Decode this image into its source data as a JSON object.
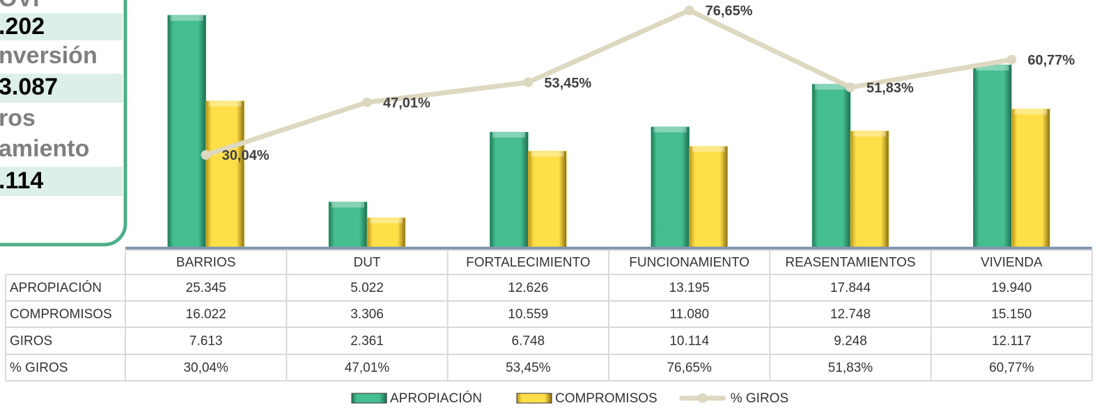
{
  "panel": {
    "lines": [
      "OVI",
      ".202",
      "nversión",
      "3.087",
      "ros",
      "amiento",
      ".114"
    ]
  },
  "chart_data": {
    "type": "bar",
    "categories": [
      "BARRIOS",
      "DUT",
      "FORTALECIMIENTO",
      "FUNCIONAMIENTO",
      "REASENTAMIENTOS",
      "VIVIENDA"
    ],
    "series": [
      {
        "name": "APROPIACIÓN",
        "type": "bar",
        "color": "#3cb386",
        "values": [
          25345,
          5022,
          12626,
          13195,
          17844,
          19940
        ],
        "value_labels": [
          "25.345",
          "5.022",
          "12.626",
          "13.195",
          "17.844",
          "19.940"
        ]
      },
      {
        "name": "COMPROMISOS",
        "type": "bar",
        "color": "#ffd940",
        "values": [
          16022,
          3306,
          10559,
          11080,
          12748,
          15150
        ],
        "value_labels": [
          "16.022",
          "3.306",
          "10.559",
          "11.080",
          "12.748",
          "15.150"
        ]
      },
      {
        "name": "GIROS",
        "type": "table",
        "values": [
          7613,
          2361,
          6748,
          10114,
          9248,
          12117
        ],
        "value_labels": [
          "7.613",
          "2.361",
          "6.748",
          "10.114",
          "9.248",
          "12.117"
        ]
      },
      {
        "name": "% GIROS",
        "type": "line",
        "axis": "y2",
        "color": "#ddd8c0",
        "values": [
          30.04,
          47.01,
          53.45,
          76.65,
          51.83,
          60.77
        ],
        "value_labels": [
          "30,04%",
          "47,01%",
          "53,45%",
          "76,65%",
          "51,83%",
          "60,77%"
        ]
      }
    ],
    "ylim": [
      0,
      27000
    ],
    "y2lim": [
      0,
      80
    ],
    "legend": "bottom"
  }
}
